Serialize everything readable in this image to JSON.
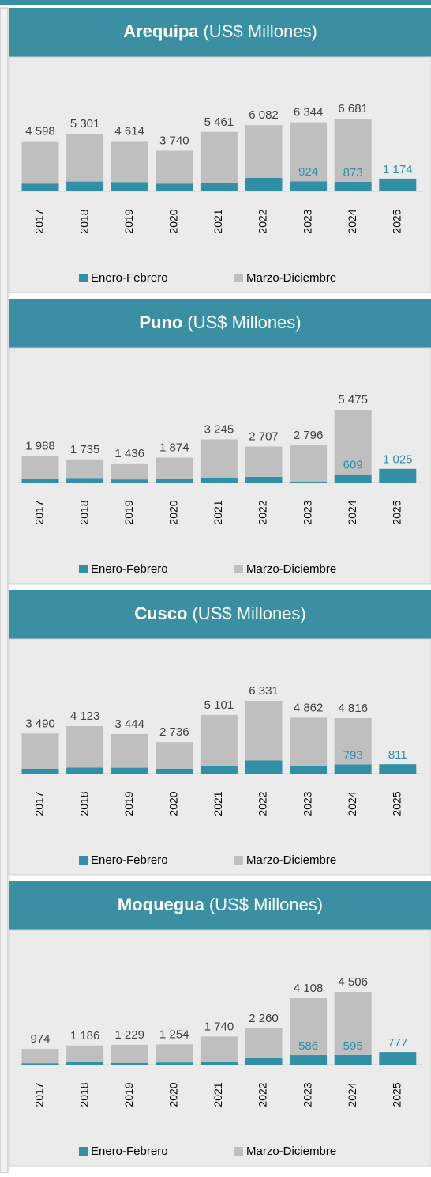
{
  "chart_data": [
    {
      "type": "bar",
      "title": "Arequipa",
      "title_suffix": "(US$ Millones)",
      "categories": [
        "2017",
        "2018",
        "2019",
        "2020",
        "2021",
        "2022",
        "2023",
        "2024",
        "2025"
      ],
      "series": [
        {
          "name": "Enero-Febrero",
          "color": "#3190a5",
          "values": [
            780,
            900,
            850,
            780,
            800,
            1250,
            924,
            873,
            1174
          ],
          "value_labels": [
            null,
            null,
            null,
            null,
            null,
            null,
            "924",
            "873",
            "1 174"
          ]
        },
        {
          "name": "Marzo-Diciembre",
          "color": "#bfbfbf",
          "values": [
            3818,
            4401,
            3764,
            2960,
            4661,
            4832,
            5420,
            5808,
            null
          ]
        }
      ],
      "totals": [
        4598,
        5301,
        4614,
        3740,
        5461,
        6082,
        6344,
        6681,
        null
      ],
      "total_labels": [
        "4 598",
        "5 301",
        "4 614",
        "3 740",
        "5 461",
        "6 082",
        "6 344",
        "6 681",
        null
      ]
    },
    {
      "type": "bar",
      "title": "Puno",
      "title_suffix": "(US$ Millones)",
      "categories": [
        "2017",
        "2018",
        "2019",
        "2020",
        "2021",
        "2022",
        "2023",
        "2024",
        "2025"
      ],
      "series": [
        {
          "name": "Enero-Febrero",
          "color": "#3190a5",
          "values": [
            290,
            340,
            230,
            300,
            370,
            420,
            60,
            609,
            1025
          ],
          "value_labels": [
            null,
            null,
            null,
            null,
            null,
            null,
            null,
            "609",
            "1 025"
          ]
        },
        {
          "name": "Marzo-Diciembre",
          "color": "#bfbfbf",
          "values": [
            1698,
            1395,
            1206,
            1574,
            2875,
            2287,
            2736,
            4866,
            null
          ]
        }
      ],
      "totals": [
        1988,
        1735,
        1436,
        1874,
        3245,
        2707,
        2796,
        5475,
        null
      ],
      "total_labels": [
        "1 988",
        "1 735",
        "1 436",
        "1 874",
        "3 245",
        "2 707",
        "2 796",
        "5 475",
        null
      ]
    },
    {
      "type": "bar",
      "title": "Cusco",
      "title_suffix": "(US$ Millones)",
      "categories": [
        "2017",
        "2018",
        "2019",
        "2020",
        "2021",
        "2022",
        "2023",
        "2024",
        "2025"
      ],
      "series": [
        {
          "name": "Enero-Febrero",
          "color": "#3190a5",
          "values": [
            420,
            520,
            510,
            420,
            680,
            1150,
            680,
            793,
            811
          ],
          "value_labels": [
            null,
            null,
            null,
            null,
            null,
            null,
            null,
            "793",
            "811"
          ]
        },
        {
          "name": "Marzo-Diciembre",
          "color": "#bfbfbf",
          "values": [
            3070,
            3603,
            2934,
            2316,
            4421,
            5181,
            4182,
            4023,
            null
          ]
        }
      ],
      "totals": [
        3490,
        4123,
        3444,
        2736,
        5101,
        6331,
        4862,
        4816,
        null
      ],
      "total_labels": [
        "3 490",
        "4 123",
        "3 444",
        "2 736",
        "5 101",
        "6 331",
        "4 862",
        "4 816",
        null
      ]
    },
    {
      "type": "bar",
      "title": "Moquegua",
      "title_suffix": "(US$ Millones)",
      "categories": [
        "2017",
        "2018",
        "2019",
        "2020",
        "2021",
        "2022",
        "2023",
        "2024",
        "2025"
      ],
      "series": [
        {
          "name": "Enero-Febrero",
          "color": "#3190a5",
          "values": [
            90,
            150,
            110,
            140,
            190,
            430,
            586,
            595,
            777
          ],
          "value_labels": [
            null,
            null,
            null,
            null,
            null,
            null,
            "586",
            "595",
            "777"
          ]
        },
        {
          "name": "Marzo-Diciembre",
          "color": "#bfbfbf",
          "values": [
            884,
            1036,
            1119,
            1114,
            1550,
            1830,
            3522,
            3911,
            null
          ]
        }
      ],
      "totals": [
        974,
        1186,
        1229,
        1254,
        1740,
        2260,
        4108,
        4506,
        null
      ],
      "total_labels": [
        "974",
        "1 186",
        "1 229",
        "1 254",
        "1 740",
        "2 260",
        "4 108",
        "4 506",
        null
      ]
    }
  ]
}
